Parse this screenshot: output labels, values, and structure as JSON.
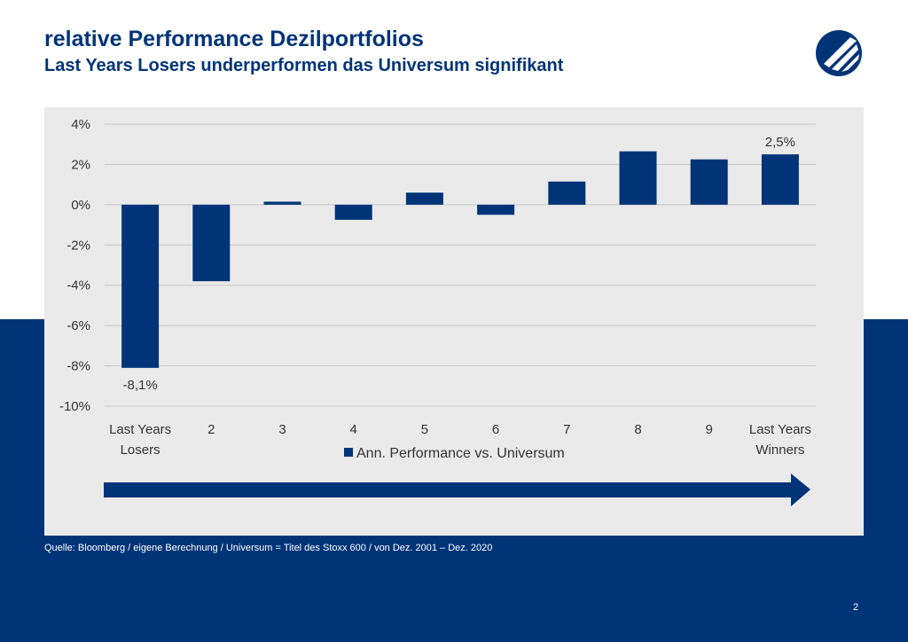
{
  "slide": {
    "title": "relative Performance Dezilportfolios",
    "subtitle": "Last Years Losers underperformen das Universum signifikant",
    "source": "Quelle: Bloomberg / eigene Berechnung  / Universum = Titel des Stoxx 600 / von Dez. 2001 – Dez. 2020",
    "page_number": "2",
    "logo_icon": "company-logo-icon"
  },
  "colors": {
    "primary": "#003478",
    "panel_background": "#eaeaea",
    "grid": "#c8c8c8"
  },
  "chart_data": {
    "type": "bar",
    "categories": [
      [
        "Last Years",
        "Losers"
      ],
      [
        "2"
      ],
      [
        "3"
      ],
      [
        "4"
      ],
      [
        "5"
      ],
      [
        "6"
      ],
      [
        "7"
      ],
      [
        "8"
      ],
      [
        "9"
      ],
      [
        "Last Years",
        "Winners"
      ]
    ],
    "series": [
      {
        "name": "Ann. Performance vs. Universum",
        "values": [
          -8.1,
          -3.8,
          0.15,
          -0.75,
          0.6,
          -0.5,
          1.15,
          2.65,
          2.25,
          2.5
        ],
        "color": "#003478"
      }
    ],
    "data_labels": [
      {
        "index": 0,
        "text": "-8,1%"
      },
      {
        "index": 9,
        "text": "2,5%"
      }
    ],
    "y_ticks": [
      "4%",
      "2%",
      "0%",
      "-2%",
      "-4%",
      "-6%",
      "-8%",
      "-10%"
    ],
    "y_tick_values": [
      4,
      2,
      0,
      -2,
      -4,
      -6,
      -8,
      -10
    ],
    "ylim": [
      -10,
      4
    ],
    "grid": true,
    "legend_position": "bottom",
    "title": "",
    "xlabel": "",
    "ylabel": "",
    "arrow": "left-to-right"
  }
}
